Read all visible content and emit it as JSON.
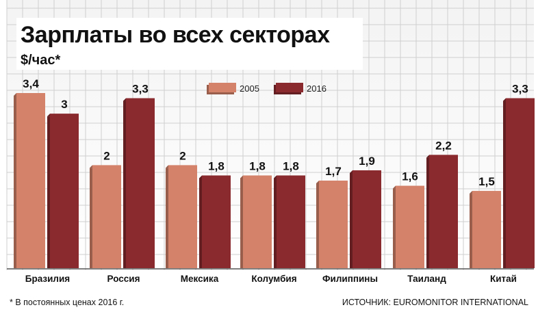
{
  "chart_data": {
    "type": "bar",
    "title": "Зарплаты во всех секторах",
    "subtitle": "$/час*",
    "categories": [
      "Бразилия",
      "Россия",
      "Мексика",
      "Колумбия",
      "Филиппины",
      "Таиланд",
      "Китай"
    ],
    "series": [
      {
        "name": "2005",
        "color": "#d4836a",
        "values": [
          3.4,
          2,
          2,
          1.8,
          1.7,
          1.6,
          1.5
        ],
        "labels": [
          "3,4",
          "2",
          "2",
          "1,8",
          "1,7",
          "1,6",
          "1,5"
        ]
      },
      {
        "name": "2016",
        "color": "#8a2a2e",
        "values": [
          3,
          3.3,
          1.8,
          1.8,
          1.9,
          2.2,
          3.3
        ],
        "labels": [
          "3",
          "3,3",
          "1,8",
          "1,8",
          "1,9",
          "2,2",
          "3,3"
        ]
      }
    ],
    "ylim": [
      0,
      3.4
    ],
    "grid": true,
    "legend_position": "top-center",
    "footnote": "* В постоянных ценах 2016 г.",
    "source": "ИСТОЧНИК: EUROMONITOR INTERNATIONAL"
  }
}
